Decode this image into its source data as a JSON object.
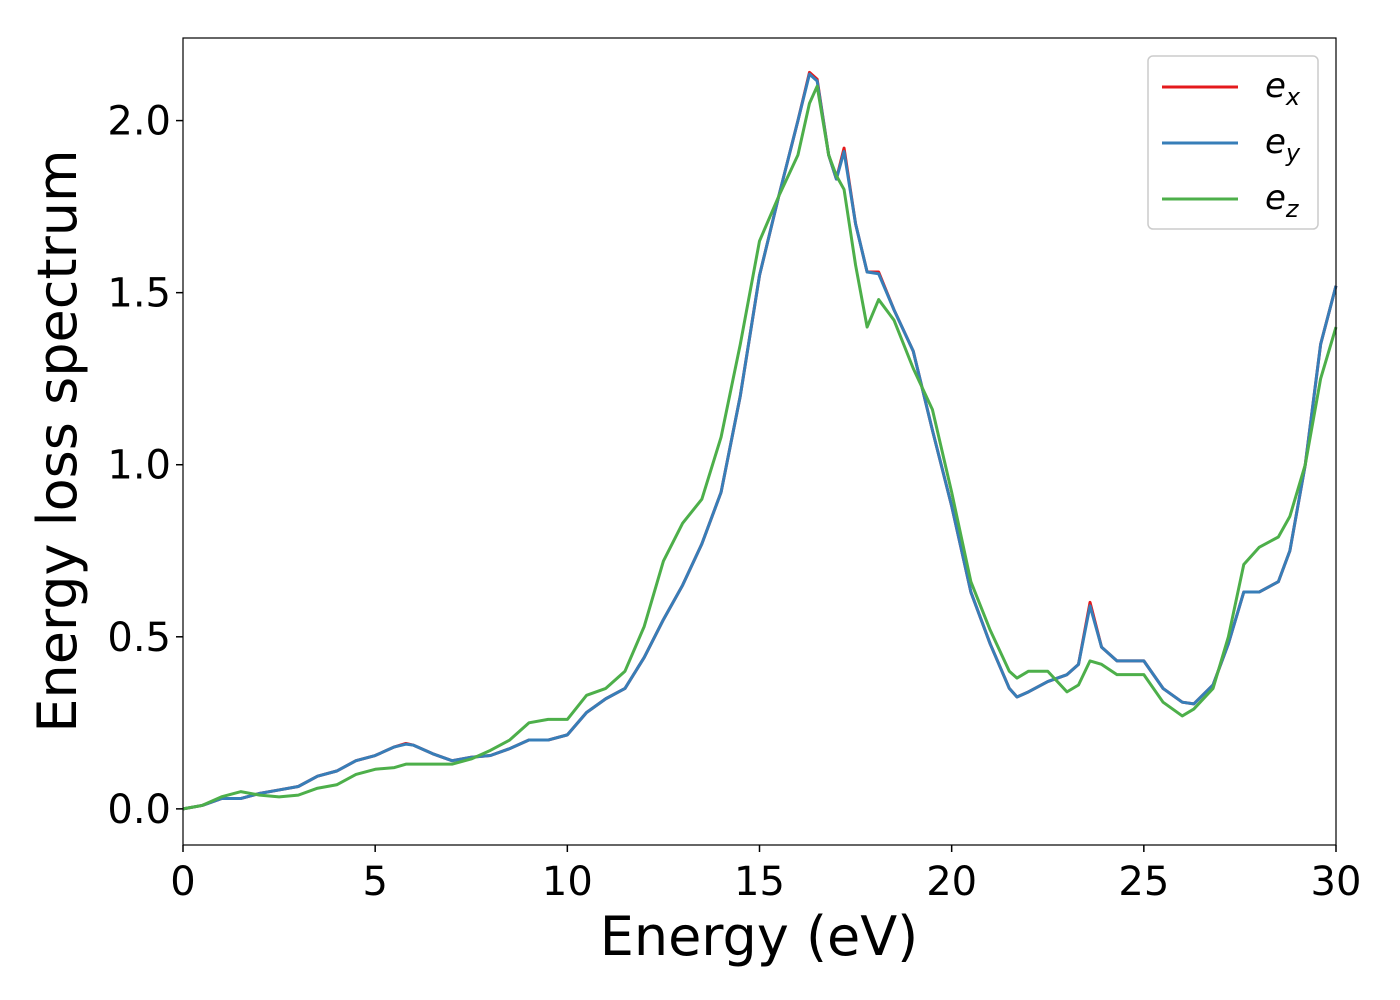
{
  "chart_data": {
    "type": "line",
    "x_label": "Energy (eV)",
    "y_label": "Energy loss spectrum",
    "x": [
      0,
      0.5,
      1.0,
      1.5,
      2.0,
      2.5,
      3.0,
      3.5,
      4.0,
      4.5,
      5.0,
      5.5,
      5.8,
      6.0,
      6.5,
      7.0,
      7.5,
      8.0,
      8.5,
      9.0,
      9.5,
      10.0,
      10.5,
      11.0,
      11.5,
      12.0,
      12.5,
      13.0,
      13.5,
      14.0,
      14.5,
      15.0,
      15.5,
      16.0,
      16.3,
      16.5,
      16.8,
      17.0,
      17.2,
      17.5,
      17.8,
      18.1,
      18.5,
      19.0,
      19.5,
      20.0,
      20.5,
      21.0,
      21.5,
      21.7,
      22.0,
      22.5,
      23.0,
      23.3,
      23.6,
      23.9,
      24.3,
      25.0,
      25.5,
      26.0,
      26.3,
      26.8,
      27.2,
      27.6,
      28.0,
      28.5,
      28.8,
      29.2,
      29.6,
      30.0
    ],
    "series": [
      {
        "name": "ex",
        "color": "#e41a1c",
        "values": [
          0,
          0.01,
          0.03,
          0.03,
          0.045,
          0.055,
          0.065,
          0.095,
          0.11,
          0.14,
          0.155,
          0.18,
          0.19,
          0.185,
          0.16,
          0.14,
          0.15,
          0.155,
          0.175,
          0.2,
          0.2,
          0.215,
          0.28,
          0.32,
          0.35,
          0.44,
          0.55,
          0.65,
          0.77,
          0.92,
          1.2,
          1.55,
          1.78,
          2.0,
          2.14,
          2.12,
          1.9,
          1.83,
          1.92,
          1.7,
          1.56,
          1.56,
          1.45,
          1.33,
          1.1,
          0.88,
          0.63,
          0.48,
          0.35,
          0.325,
          0.34,
          0.37,
          0.39,
          0.42,
          0.6,
          0.47,
          0.43,
          0.43,
          0.35,
          0.31,
          0.305,
          0.36,
          0.48,
          0.63,
          0.63,
          0.66,
          0.75,
          1.0,
          1.35,
          1.52
        ]
      },
      {
        "name": "ey",
        "color": "#377eb8",
        "values": [
          0,
          0.01,
          0.03,
          0.03,
          0.045,
          0.055,
          0.065,
          0.095,
          0.11,
          0.14,
          0.155,
          0.18,
          0.188,
          0.185,
          0.16,
          0.14,
          0.15,
          0.155,
          0.175,
          0.2,
          0.2,
          0.215,
          0.28,
          0.32,
          0.35,
          0.44,
          0.55,
          0.65,
          0.77,
          0.92,
          1.2,
          1.55,
          1.78,
          2.0,
          2.135,
          2.115,
          1.9,
          1.83,
          1.91,
          1.7,
          1.56,
          1.555,
          1.45,
          1.33,
          1.1,
          0.88,
          0.63,
          0.48,
          0.35,
          0.325,
          0.34,
          0.37,
          0.39,
          0.42,
          0.59,
          0.47,
          0.43,
          0.43,
          0.35,
          0.31,
          0.305,
          0.36,
          0.48,
          0.63,
          0.63,
          0.66,
          0.75,
          1.0,
          1.35,
          1.52
        ]
      },
      {
        "name": "ez",
        "color": "#4daf4a",
        "values": [
          0,
          0.01,
          0.035,
          0.05,
          0.04,
          0.035,
          0.04,
          0.06,
          0.07,
          0.1,
          0.115,
          0.12,
          0.13,
          0.13,
          0.13,
          0.13,
          0.145,
          0.17,
          0.2,
          0.25,
          0.26,
          0.26,
          0.33,
          0.35,
          0.4,
          0.53,
          0.72,
          0.83,
          0.9,
          1.08,
          1.35,
          1.65,
          1.78,
          1.9,
          2.05,
          2.1,
          1.9,
          1.84,
          1.8,
          1.58,
          1.4,
          1.48,
          1.42,
          1.28,
          1.16,
          0.92,
          0.66,
          0.52,
          0.4,
          0.38,
          0.4,
          0.4,
          0.34,
          0.36,
          0.43,
          0.42,
          0.39,
          0.39,
          0.31,
          0.27,
          0.29,
          0.35,
          0.5,
          0.71,
          0.76,
          0.79,
          0.85,
          1.0,
          1.25,
          1.4
        ]
      }
    ],
    "xlim": [
      0,
      30
    ],
    "xticks": [
      0,
      5,
      10,
      15,
      20,
      25,
      30
    ],
    "ylim": [
      -0.105,
      2.24
    ],
    "yticks": [
      {
        "value": 0,
        "label": "0.0"
      },
      {
        "value": 0.5,
        "label": "0.5"
      },
      {
        "value": 1,
        "label": "1.0"
      },
      {
        "value": 1.5,
        "label": "1.5"
      },
      {
        "value": 2,
        "label": "2.0"
      }
    ],
    "legend": "upper right",
    "grid": false
  }
}
